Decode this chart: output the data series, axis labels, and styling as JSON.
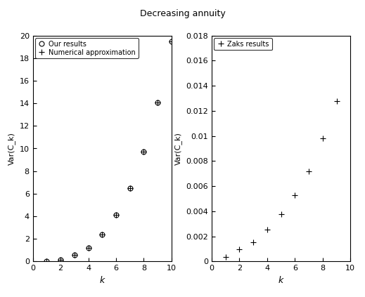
{
  "title": "Decreasing annuity",
  "left_plot": {
    "k_our": [
      1,
      2,
      3,
      4,
      5,
      6,
      7,
      8,
      9,
      10
    ],
    "var_our": [
      0.02,
      0.15,
      0.55,
      1.2,
      2.35,
      4.1,
      6.5,
      9.7,
      14.1,
      19.5
    ],
    "k_num": [
      1,
      2,
      3,
      4,
      5,
      6,
      7,
      8,
      9,
      10
    ],
    "var_num": [
      0.02,
      0.15,
      0.55,
      1.2,
      2.35,
      4.1,
      6.5,
      9.7,
      14.1,
      19.5
    ],
    "xlabel": "k",
    "ylabel": "Var(C_k)",
    "xlim": [
      0,
      10
    ],
    "ylim": [
      0,
      20
    ],
    "yticks": [
      0,
      2,
      4,
      6,
      8,
      10,
      12,
      14,
      16,
      18,
      20
    ],
    "xticks": [
      0,
      2,
      4,
      6,
      8,
      10
    ],
    "legend1": "Our results",
    "legend2": "Numerical approximation"
  },
  "right_plot": {
    "k_zaks": [
      1,
      2,
      3,
      4,
      5,
      6,
      7,
      8,
      9
    ],
    "var_zaks": [
      0.00035,
      0.00095,
      0.00155,
      0.00255,
      0.00375,
      0.0053,
      0.0072,
      0.0098,
      0.0128
    ],
    "xlabel": "k",
    "ylabel": "Var(C_k)",
    "xlim": [
      0,
      10
    ],
    "ylim": [
      0,
      0.018
    ],
    "yticks": [
      0,
      0.002,
      0.004,
      0.006,
      0.008,
      0.01,
      0.012,
      0.014,
      0.016,
      0.018
    ],
    "xticks": [
      0,
      2,
      4,
      6,
      8,
      10
    ],
    "legend": "Zaks results"
  },
  "bg_color": "#ffffff",
  "font_size": 8
}
